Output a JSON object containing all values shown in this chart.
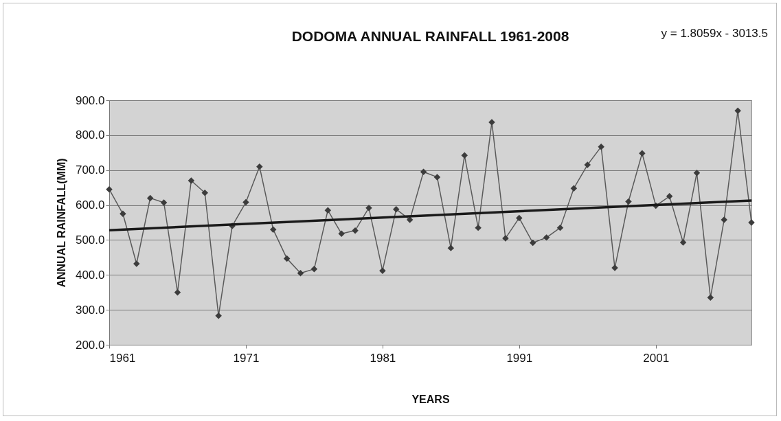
{
  "chart_data": {
    "type": "line",
    "title": "DODOMA ANNUAL RAINFALL  1961-2008",
    "xlabel": "YEARS",
    "ylabel": "ANNUAL RAINFALL(MM)",
    "annotations": [
      "y = 1.8059x - 3013.5"
    ],
    "xlim": [
      1961,
      2008
    ],
    "xticks": [
      1961,
      1971,
      1981,
      1991,
      2001
    ],
    "ylim": [
      200,
      900
    ],
    "yticks": [
      {
        "value": 200,
        "label": "200.0"
      },
      {
        "value": 300,
        "label": "300.0"
      },
      {
        "value": 400,
        "label": "400.0"
      },
      {
        "value": 500,
        "label": "500.0"
      },
      {
        "value": 600,
        "label": "600.0"
      },
      {
        "value": 700,
        "label": "700.0"
      },
      {
        "value": 800,
        "label": "800.0"
      },
      {
        "value": 900,
        "label": "900.0"
      }
    ],
    "grid": "y",
    "series": [
      {
        "marker": "diamond",
        "color": "#5a5a5a",
        "x": [
          1961,
          1962,
          1963,
          1964,
          1965,
          1966,
          1967,
          1968,
          1969,
          1970,
          1971,
          1972,
          1973,
          1974,
          1975,
          1976,
          1977,
          1978,
          1979,
          1980,
          1981,
          1982,
          1983,
          1984,
          1985,
          1986,
          1987,
          1988,
          1989,
          1990,
          1991,
          1992,
          1993,
          1994,
          1995,
          1996,
          1997,
          1998,
          1999,
          2000,
          2001,
          2002,
          2003,
          2004,
          2005,
          2006,
          2007,
          2008
        ],
        "values": [
          645,
          575,
          432,
          620,
          607,
          350,
          670,
          635,
          283,
          540,
          608,
          710,
          530,
          447,
          405,
          417,
          585,
          518,
          527,
          592,
          412,
          588,
          558,
          695,
          680,
          477,
          742,
          535,
          837,
          505,
          563,
          492,
          507,
          535,
          648,
          715,
          767,
          420,
          610,
          748,
          598,
          625,
          493,
          692,
          335,
          558,
          870,
          550
        ]
      },
      {
        "marker": "none",
        "color": "#1a1a1a",
        "x": [
          1961,
          2008
        ],
        "values": [
          528,
          613
        ]
      }
    ]
  }
}
